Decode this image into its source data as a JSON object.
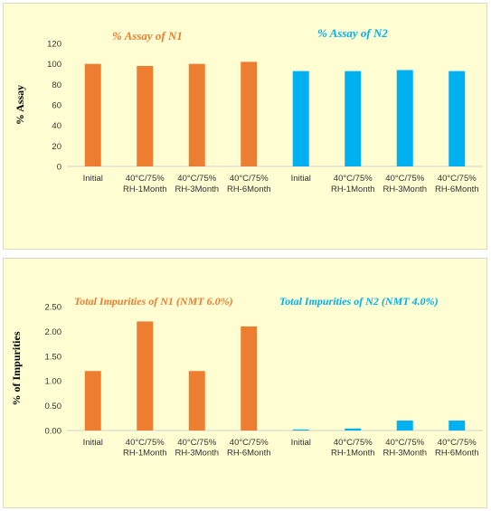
{
  "chart_data": [
    {
      "type": "bar",
      "categories": [
        [
          "Initial"
        ],
        [
          "40°C/75%",
          "RH-1Month"
        ],
        [
          "40°C/75%",
          "RH-3Month"
        ],
        [
          "40°C/75%",
          "RH-6Month"
        ],
        [
          "Initial"
        ],
        [
          "40°C/75%",
          "RH-1Month"
        ],
        [
          "40°C/75%",
          "RH-3Month"
        ],
        [
          "40°C/75%",
          "RH-6Month"
        ]
      ],
      "values": [
        100,
        98,
        100,
        102,
        93,
        93,
        94,
        93
      ],
      "bar_colors": [
        "#ed7d31",
        "#ed7d31",
        "#ed7d31",
        "#ed7d31",
        "#00b0f0",
        "#00b0f0",
        "#00b0f0",
        "#00b0f0"
      ],
      "ylabel": "% Assay",
      "ylim": [
        0,
        120
      ],
      "yticks": [
        "0",
        "20",
        "40",
        "60",
        "80",
        "100",
        "120"
      ],
      "grid": false,
      "annotations": [
        {
          "text": "% Assay of N1",
          "color": "#ed7d31"
        },
        {
          "text": "% Assay of N2",
          "color": "#00b0f0"
        }
      ]
    },
    {
      "type": "bar",
      "categories": [
        [
          "Initial"
        ],
        [
          "40°C/75%",
          "RH-1Month"
        ],
        [
          "40°C/75%",
          "RH-3Month"
        ],
        [
          "40°C/75%",
          "RH-6Month"
        ],
        [
          "Initial"
        ],
        [
          "40°C/75%",
          "RH-1Month"
        ],
        [
          "40°C/75%",
          "RH-3Month"
        ],
        [
          "40°C/75%",
          "RH-6Month"
        ]
      ],
      "values": [
        1.2,
        2.2,
        1.2,
        2.1,
        0.02,
        0.04,
        0.2,
        0.2
      ],
      "bar_colors": [
        "#ed7d31",
        "#ed7d31",
        "#ed7d31",
        "#ed7d31",
        "#00b0f0",
        "#00b0f0",
        "#00b0f0",
        "#00b0f0"
      ],
      "ylabel": "% of Impurities",
      "ylim": [
        0,
        2.5
      ],
      "yticks": [
        "0.00",
        "0.50",
        "1.00",
        "1.50",
        "2.00",
        "2.50"
      ],
      "grid": false,
      "annotations": [
        {
          "text": "Total Impurities of N1 (NMT 6.0%)",
          "color": "#ed7d31"
        },
        {
          "text": "Total Impurities of N2 (NMT 4.0%)",
          "color": "#00b0f0"
        }
      ]
    }
  ]
}
